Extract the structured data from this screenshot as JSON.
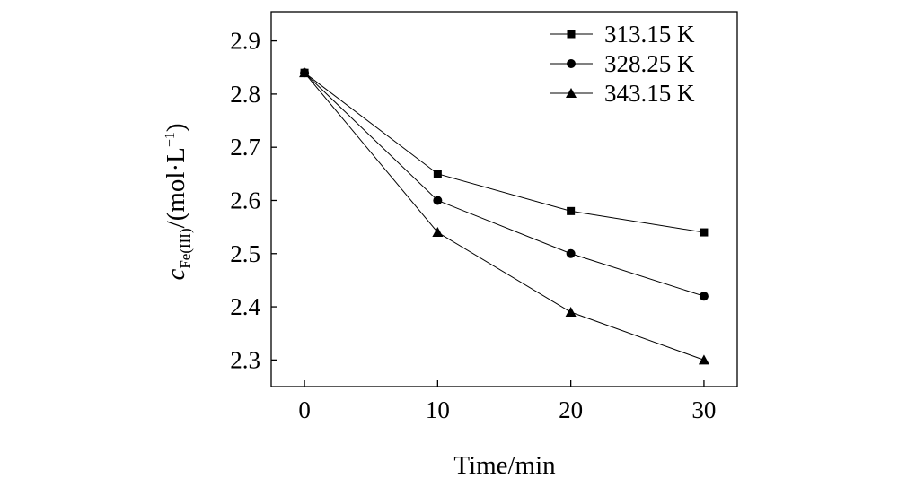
{
  "chart_data": {
    "type": "line",
    "x": [
      0,
      10,
      20,
      30
    ],
    "series": [
      {
        "name": "313.15 K",
        "marker": "square",
        "values": [
          2.84,
          2.65,
          2.58,
          2.54
        ]
      },
      {
        "name": "328.25 K",
        "marker": "circle",
        "values": [
          2.84,
          2.6,
          2.5,
          2.42
        ]
      },
      {
        "name": "343.15 K",
        "marker": "triangle",
        "values": [
          2.84,
          2.54,
          2.39,
          2.3
        ]
      }
    ],
    "xlabel": "Time/min",
    "ylabel": {
      "symbol": "c",
      "subscript": "Fe(III)",
      "unit_prefix": "/(mol·L",
      "superscript": "−1",
      "unit_suffix": ")"
    },
    "xticks": [
      "0",
      "10",
      "20",
      "30"
    ],
    "yticks": [
      "2.3",
      "2.4",
      "2.5",
      "2.6",
      "2.7",
      "2.8",
      "2.9"
    ],
    "xlim": [
      -2.5,
      32.5
    ],
    "ylim": [
      2.25,
      2.955
    ],
    "legend_position": "top-right",
    "grid": false,
    "colors": {
      "line": "#000000",
      "marker": "#000000"
    }
  }
}
